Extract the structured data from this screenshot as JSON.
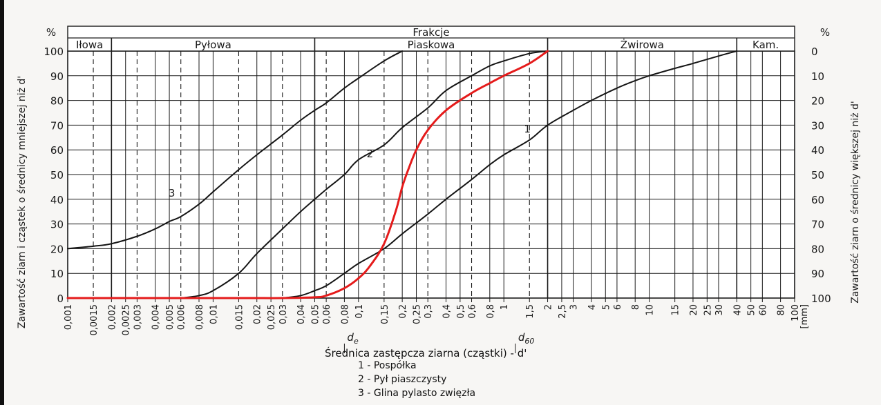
{
  "chart_data": {
    "type": "line",
    "x_scale": "log",
    "xlim": [
      0.001,
      100
    ],
    "ylim": [
      0,
      100
    ],
    "y_ticks_left": [
      0,
      10,
      20,
      30,
      40,
      50,
      60,
      70,
      80,
      90,
      100
    ],
    "y_ticks_right": [
      100,
      90,
      80,
      70,
      60,
      50,
      40,
      30,
      20,
      10,
      0
    ],
    "y_unit_left": "%",
    "y_unit_right": "%",
    "ylabel_left": "Zawartość ziarn i cząstek o średnicy mniejszej niż d'",
    "ylabel_right": "Zawartość ziarn o średnicy większej niż d'",
    "xlabel": "Średnica zastępcza ziarna (cząstki) - d'",
    "x_unit_label": "[mm]",
    "x_ticks": [
      {
        "v": 0.001,
        "t": "0,001"
      },
      {
        "v": 0.0015,
        "t": "0,0015"
      },
      {
        "v": 0.002,
        "t": "0,002"
      },
      {
        "v": 0.0025,
        "t": "0,0025"
      },
      {
        "v": 0.003,
        "t": "0,003"
      },
      {
        "v": 0.004,
        "t": "0,004"
      },
      {
        "v": 0.005,
        "t": "0,005"
      },
      {
        "v": 0.006,
        "t": "0,006"
      },
      {
        "v": 0.008,
        "t": "0,008"
      },
      {
        "v": 0.01,
        "t": "0,01"
      },
      {
        "v": 0.015,
        "t": "0,015"
      },
      {
        "v": 0.02,
        "t": "0,02"
      },
      {
        "v": 0.025,
        "t": "0,025"
      },
      {
        "v": 0.03,
        "t": "0,03"
      },
      {
        "v": 0.04,
        "t": "0,04"
      },
      {
        "v": 0.05,
        "t": "0,05"
      },
      {
        "v": 0.06,
        "t": "0,06"
      },
      {
        "v": 0.08,
        "t": "0,08"
      },
      {
        "v": 0.1,
        "t": "0,1"
      },
      {
        "v": 0.15,
        "t": "0,15"
      },
      {
        "v": 0.2,
        "t": "0,2"
      },
      {
        "v": 0.25,
        "t": "0,25"
      },
      {
        "v": 0.3,
        "t": "0,3"
      },
      {
        "v": 0.4,
        "t": "0,4"
      },
      {
        "v": 0.5,
        "t": "0,5"
      },
      {
        "v": 0.6,
        "t": "0,6"
      },
      {
        "v": 0.8,
        "t": "0,8"
      },
      {
        "v": 1,
        "t": "1"
      },
      {
        "v": 1.5,
        "t": "1,5"
      },
      {
        "v": 2,
        "t": "2"
      },
      {
        "v": 2.5,
        "t": "2,5"
      },
      {
        "v": 3,
        "t": "3"
      },
      {
        "v": 4,
        "t": "4"
      },
      {
        "v": 5,
        "t": "5"
      },
      {
        "v": 6,
        "t": "6"
      },
      {
        "v": 8,
        "t": "8"
      },
      {
        "v": 10,
        "t": "10"
      },
      {
        "v": 15,
        "t": "15"
      },
      {
        "v": 20,
        "t": "20"
      },
      {
        "v": 25,
        "t": "25"
      },
      {
        "v": 30,
        "t": "30"
      },
      {
        "v": 40,
        "t": "40"
      },
      {
        "v": 50,
        "t": "50"
      },
      {
        "v": 60,
        "t": "60"
      },
      {
        "v": 80,
        "t": "80"
      },
      {
        "v": 100,
        "t": "100"
      }
    ],
    "header": "Frakcje",
    "fractions": [
      {
        "name": "Iłowa",
        "from": 0.001,
        "to": 0.002
      },
      {
        "name": "Pyłowa",
        "from": 0.002,
        "to": 0.05
      },
      {
        "name": "Piaskowa",
        "from": 0.05,
        "to": 2
      },
      {
        "name": "Żwirowa",
        "from": 2,
        "to": 40
      },
      {
        "name": "Kam.",
        "from": 40,
        "to": 100
      }
    ],
    "dashed_lines": [
      0.0015,
      0.003,
      0.006,
      0.015,
      0.03,
      0.06,
      0.15,
      0.3,
      0.6,
      1.5
    ],
    "markers": [
      {
        "label": "d",
        "sub": "e",
        "x": 0.08
      },
      {
        "label": "d",
        "sub": "60",
        "x": 1.2
      }
    ],
    "series": [
      {
        "name": "1 - Pospółka",
        "label": "1",
        "color": "#151515",
        "label_at": {
          "x": 1.45,
          "y": 67
        },
        "points": [
          [
            0.03,
            0
          ],
          [
            0.04,
            1
          ],
          [
            0.05,
            3
          ],
          [
            0.06,
            5
          ],
          [
            0.08,
            10
          ],
          [
            0.1,
            14
          ],
          [
            0.15,
            20
          ],
          [
            0.2,
            26
          ],
          [
            0.3,
            34
          ],
          [
            0.4,
            40
          ],
          [
            0.6,
            48
          ],
          [
            0.8,
            54
          ],
          [
            1,
            58
          ],
          [
            1.5,
            64
          ],
          [
            2,
            70
          ],
          [
            3,
            76
          ],
          [
            4,
            80
          ],
          [
            6,
            85
          ],
          [
            8,
            88
          ],
          [
            10,
            90
          ],
          [
            15,
            93
          ],
          [
            20,
            95
          ],
          [
            30,
            98
          ],
          [
            40,
            100
          ]
        ]
      },
      {
        "name": "2 - Pył piaszczysty",
        "label": "2",
        "color": "#151515",
        "label_at": {
          "x": 0.12,
          "y": 57
        },
        "points": [
          [
            0.006,
            0
          ],
          [
            0.008,
            1
          ],
          [
            0.01,
            3
          ],
          [
            0.015,
            10
          ],
          [
            0.02,
            18
          ],
          [
            0.03,
            28
          ],
          [
            0.04,
            35
          ],
          [
            0.05,
            40
          ],
          [
            0.06,
            44
          ],
          [
            0.08,
            50
          ],
          [
            0.1,
            56
          ],
          [
            0.15,
            62
          ],
          [
            0.2,
            69
          ],
          [
            0.3,
            77
          ],
          [
            0.4,
            84
          ],
          [
            0.6,
            90
          ],
          [
            0.8,
            94
          ],
          [
            1,
            96
          ],
          [
            1.5,
            99
          ],
          [
            2,
            100
          ]
        ]
      },
      {
        "name": "3 - Glina pylasto zwięzła",
        "label": "3",
        "color": "#151515",
        "label_at": {
          "x": 0.0052,
          "y": 41
        },
        "points": [
          [
            0.001,
            20
          ],
          [
            0.0015,
            21
          ],
          [
            0.002,
            22
          ],
          [
            0.003,
            25
          ],
          [
            0.004,
            28
          ],
          [
            0.005,
            31
          ],
          [
            0.006,
            33
          ],
          [
            0.008,
            38
          ],
          [
            0.01,
            43
          ],
          [
            0.015,
            52
          ],
          [
            0.02,
            58
          ],
          [
            0.03,
            66
          ],
          [
            0.04,
            72
          ],
          [
            0.05,
            76
          ],
          [
            0.06,
            79
          ],
          [
            0.08,
            85
          ],
          [
            0.1,
            89
          ],
          [
            0.15,
            96
          ],
          [
            0.2,
            100
          ]
        ]
      },
      {
        "name": "",
        "label": "",
        "color": "#e51b1b",
        "points": [
          [
            0.001,
            0
          ],
          [
            0.01,
            0
          ],
          [
            0.03,
            0
          ],
          [
            0.05,
            0.3
          ],
          [
            0.06,
            1
          ],
          [
            0.08,
            4
          ],
          [
            0.1,
            8
          ],
          [
            0.12,
            13
          ],
          [
            0.15,
            22
          ],
          [
            0.18,
            35
          ],
          [
            0.2,
            45
          ],
          [
            0.22,
            52
          ],
          [
            0.25,
            60
          ],
          [
            0.3,
            68
          ],
          [
            0.4,
            76
          ],
          [
            0.6,
            83
          ],
          [
            0.8,
            87
          ],
          [
            1,
            90
          ],
          [
            1.5,
            95
          ],
          [
            2,
            100
          ]
        ]
      }
    ],
    "legend": [
      "1 - Pospółka",
      "2 - Pył piaszczysty",
      "3 - Glina pylasto zwięzła"
    ]
  }
}
